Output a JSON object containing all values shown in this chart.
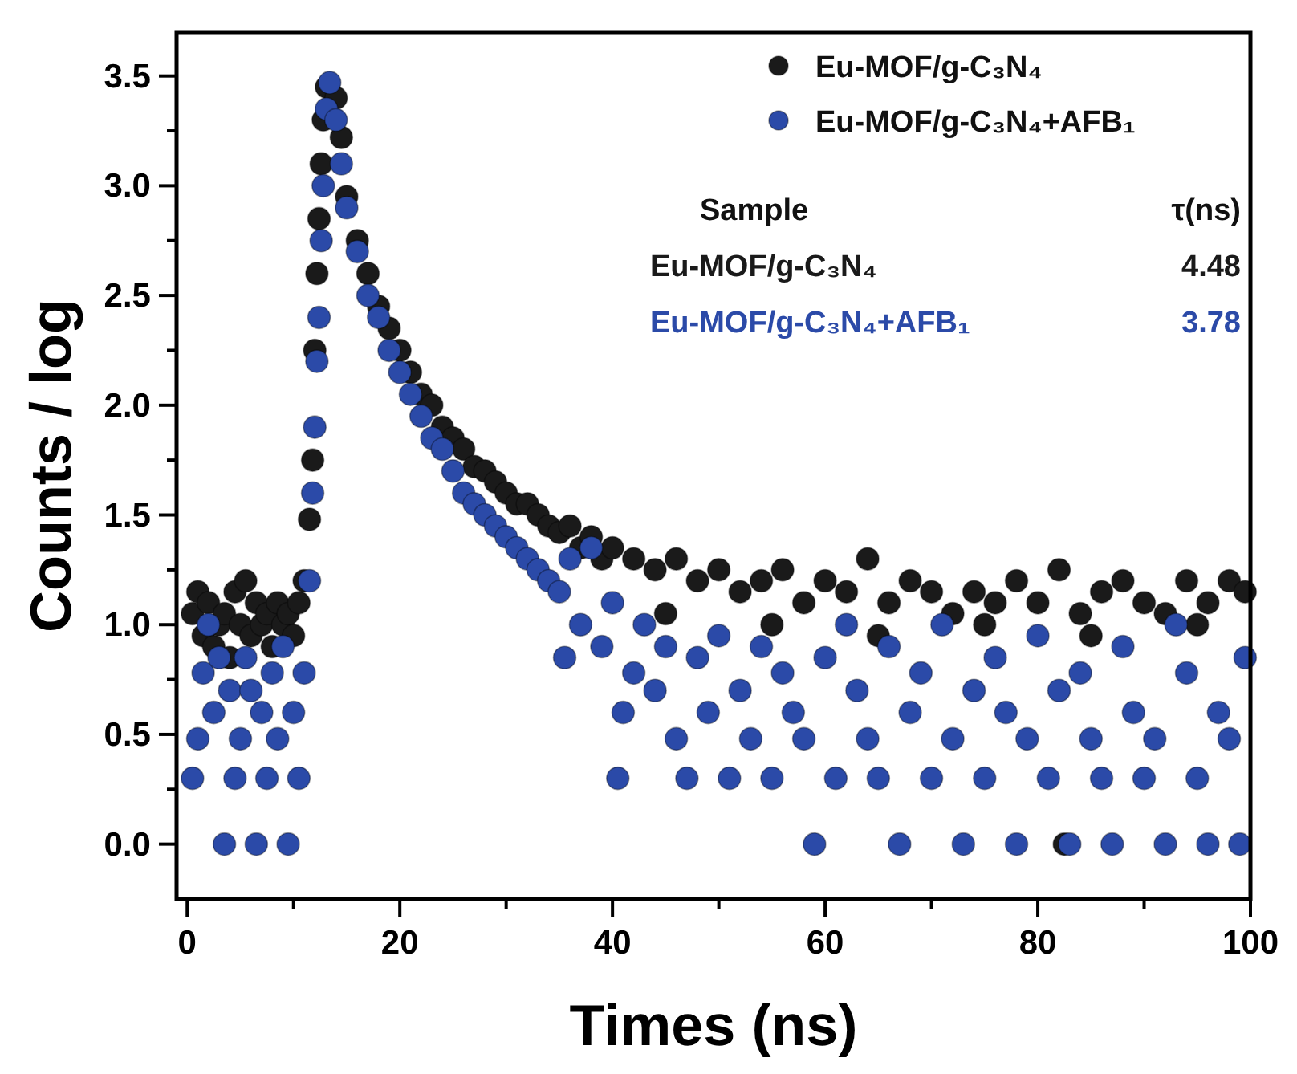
{
  "chart_data": {
    "type": "scatter",
    "xlabel": "Times (ns)",
    "ylabel": "Counts / log",
    "xlim": [
      -1,
      100
    ],
    "ylim": [
      -0.25,
      3.7
    ],
    "xticks": [
      0,
      {
        "value": 10,
        "label": null
      },
      20,
      {
        "value": 30,
        "label": null
      },
      40,
      {
        "value": 50,
        "label": null
      },
      60,
      {
        "value": 70,
        "label": null
      },
      80,
      {
        "value": 90,
        "label": null
      },
      100
    ],
    "yticks": [
      {
        "value": 0,
        "label": "0.0"
      },
      {
        "value": 0.25,
        "label": null
      },
      0.5,
      {
        "value": 0.75,
        "label": null
      },
      {
        "value": 1,
        "label": "1.0"
      },
      {
        "value": 1.25,
        "label": null
      },
      1.5,
      {
        "value": 1.75,
        "label": null
      },
      {
        "value": 2,
        "label": "2.0"
      },
      {
        "value": 2.25,
        "label": null
      },
      2.5,
      {
        "value": 2.75,
        "label": null
      },
      {
        "value": 3,
        "label": "3.0"
      },
      {
        "value": 3.25,
        "label": null
      },
      3.5
    ],
    "grid": false,
    "legend": "top right",
    "marker": "circle",
    "annotations": [
      "Sample",
      "τ(ns)",
      "Eu-MOF/g-C₃N₄",
      "4.48",
      "Eu-MOF/g-C₃N₄+AFB₁",
      "3.78"
    ],
    "series": [
      {
        "name": "Eu-MOF/g-C₃N₄",
        "color": "#1a1a1a",
        "x": [
          0.5,
          1,
          1.5,
          2,
          2.5,
          3,
          3.5,
          4,
          4.5,
          5,
          5.5,
          6,
          6.5,
          7,
          7.5,
          8,
          8.5,
          9,
          9.5,
          10,
          10.5,
          11,
          11.5,
          11.8,
          12,
          12.2,
          12.4,
          12.6,
          12.8,
          13.1,
          14,
          14.5,
          15,
          16,
          17,
          18,
          19,
          20,
          21,
          22,
          23,
          24,
          25,
          26,
          27,
          28,
          29,
          30,
          31,
          32,
          33,
          34,
          35,
          36,
          37,
          38,
          39,
          40,
          42,
          44,
          46,
          48,
          50,
          52,
          54,
          56,
          58,
          60,
          62,
          64,
          66,
          68,
          70,
          72,
          74,
          76,
          78,
          80,
          82,
          84,
          86,
          88,
          90,
          92,
          94,
          96,
          98,
          99.5,
          45,
          55,
          65,
          75,
          85,
          95,
          82.5
        ],
        "values": [
          1.05,
          1.15,
          0.95,
          1.1,
          0.9,
          1.0,
          1.05,
          0.85,
          1.15,
          1.0,
          1.2,
          0.95,
          1.1,
          1.0,
          1.05,
          0.9,
          1.1,
          1.0,
          1.05,
          0.95,
          1.1,
          1.2,
          1.48,
          1.75,
          2.25,
          2.6,
          2.85,
          3.1,
          3.3,
          3.45,
          3.4,
          3.22,
          2.95,
          2.75,
          2.6,
          2.45,
          2.35,
          2.25,
          2.15,
          2.05,
          2.0,
          1.9,
          1.85,
          1.8,
          1.72,
          1.7,
          1.65,
          1.6,
          1.55,
          1.55,
          1.5,
          1.45,
          1.42,
          1.45,
          1.35,
          1.4,
          1.3,
          1.35,
          1.3,
          1.25,
          1.3,
          1.2,
          1.25,
          1.15,
          1.2,
          1.25,
          1.1,
          1.2,
          1.15,
          1.3,
          1.1,
          1.2,
          1.15,
          1.05,
          1.15,
          1.1,
          1.2,
          1.1,
          1.25,
          1.05,
          1.15,
          1.2,
          1.1,
          1.05,
          1.2,
          1.1,
          1.2,
          1.15,
          1.05,
          1.0,
          0.95,
          1.0,
          0.95,
          1.0,
          0.0
        ]
      },
      {
        "name": "Eu-MOF/g-C₃N₄+AFB₁",
        "color": "#2b4aa8",
        "x": [
          0.5,
          1,
          1.5,
          2,
          2.5,
          3,
          3.5,
          4,
          4.5,
          5,
          5.5,
          6,
          6.5,
          7,
          7.5,
          8,
          8.5,
          9,
          9.5,
          10,
          10.5,
          11,
          11.5,
          11.8,
          12,
          12.2,
          12.4,
          12.6,
          12.8,
          13.1,
          13.4,
          14,
          14.5,
          15,
          16,
          17,
          18,
          19,
          20,
          21,
          22,
          23,
          24,
          25,
          26,
          27,
          28,
          29,
          30,
          31,
          32,
          33,
          34,
          35,
          35.5,
          36,
          37,
          38,
          39,
          40,
          40.5,
          41,
          42,
          43,
          44,
          45,
          46,
          47,
          48,
          49,
          50,
          51,
          52,
          53,
          54,
          55,
          56,
          57,
          58,
          59,
          60,
          61,
          62,
          63,
          64,
          65,
          66,
          67,
          68,
          69,
          70,
          71,
          72,
          73,
          74,
          75,
          76,
          77,
          78,
          79,
          80,
          81,
          82,
          83,
          84,
          85,
          86,
          87,
          88,
          89,
          90,
          91,
          92,
          93,
          94,
          95,
          96,
          97,
          98,
          99,
          99.5
        ],
        "values": [
          0.3,
          0.48,
          0.78,
          1.0,
          0.6,
          0.85,
          0.0,
          0.7,
          0.3,
          0.48,
          0.85,
          0.7,
          0.0,
          0.6,
          0.3,
          0.78,
          0.48,
          0.9,
          0.0,
          0.6,
          0.3,
          0.78,
          1.2,
          1.6,
          1.9,
          2.2,
          2.4,
          2.75,
          3.0,
          3.35,
          3.47,
          3.3,
          3.1,
          2.9,
          2.7,
          2.5,
          2.4,
          2.25,
          2.15,
          2.05,
          1.95,
          1.85,
          1.8,
          1.7,
          1.6,
          1.55,
          1.5,
          1.45,
          1.4,
          1.35,
          1.3,
          1.25,
          1.2,
          1.15,
          0.85,
          1.3,
          1.0,
          1.35,
          0.9,
          1.1,
          0.3,
          0.6,
          0.78,
          1.0,
          0.7,
          0.9,
          0.48,
          0.3,
          0.85,
          0.6,
          0.95,
          0.3,
          0.7,
          0.48,
          0.9,
          0.3,
          0.78,
          0.6,
          0.48,
          0.0,
          0.85,
          0.3,
          1.0,
          0.7,
          0.48,
          0.3,
          0.9,
          0.0,
          0.6,
          0.78,
          0.3,
          1.0,
          0.48,
          0.0,
          0.7,
          0.3,
          0.85,
          0.6,
          0.0,
          0.48,
          0.95,
          0.3,
          0.7,
          0.0,
          0.78,
          0.48,
          0.3,
          0.0,
          0.9,
          0.6,
          0.3,
          0.48,
          0.0,
          1.0,
          0.78,
          0.3,
          0.0,
          0.6,
          0.48,
          0.0,
          0.85
        ]
      }
    ]
  }
}
